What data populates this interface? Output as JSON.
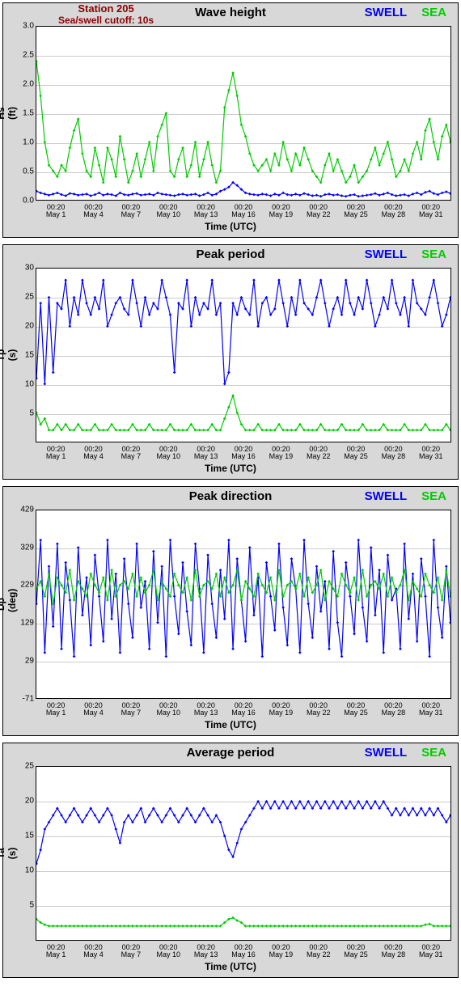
{
  "global": {
    "station_label_line1": "Station 205",
    "station_label_line2": "Sea/swell cutoff: 10s",
    "legend_swell": "SWELL",
    "legend_sea": "SEA",
    "x_axis_label": "Time (UTC)",
    "x_tick_dates": [
      "May 1",
      "May 4",
      "May 7",
      "May 10",
      "May 13",
      "May 16",
      "May 19",
      "May 22",
      "May 25",
      "May 28",
      "May 31"
    ],
    "x_tick_time": "00:20",
    "colors": {
      "swell": "#0000ff",
      "sea": "#00cc00",
      "panel_bg": "#d8d8d8",
      "plot_bg": "#ffffff",
      "grid": "#cccccc",
      "station_text": "#8b0000"
    },
    "font_sizes": {
      "title": 15,
      "legend": 15,
      "ticks": 10,
      "axis_label": 12,
      "station": 13
    }
  },
  "panels": [
    {
      "id": "wave_height",
      "title": "Wave height",
      "ylabel": "Hs (ft)",
      "ylim": [
        0.0,
        3.0
      ],
      "ytick_step": 0.5,
      "yticks": [
        "0.0",
        "0.5",
        "1.0",
        "1.5",
        "2.0",
        "2.5",
        "3.0"
      ],
      "show_station": true,
      "type": "line",
      "line_width": 1.2,
      "marker": "diamond",
      "marker_size": 2.5,
      "series": {
        "sea": [
          2.4,
          1.8,
          1.0,
          0.6,
          0.5,
          0.4,
          0.6,
          0.5,
          0.9,
          1.2,
          1.4,
          0.8,
          0.5,
          0.4,
          0.9,
          0.6,
          0.3,
          0.9,
          0.7,
          0.4,
          1.1,
          0.7,
          0.3,
          0.5,
          0.8,
          0.4,
          0.7,
          1.0,
          0.5,
          1.1,
          1.3,
          1.5,
          0.5,
          0.4,
          0.7,
          0.9,
          0.4,
          0.6,
          1.0,
          0.4,
          0.7,
          1.0,
          0.6,
          0.3,
          0.5,
          1.6,
          1.9,
          2.2,
          1.8,
          1.3,
          1.1,
          0.8,
          0.6,
          0.5,
          0.6,
          0.7,
          0.5,
          0.8,
          0.6,
          1.0,
          0.7,
          0.5,
          0.8,
          0.6,
          0.9,
          0.7,
          0.5,
          0.4,
          0.3,
          0.6,
          0.8,
          0.5,
          0.7,
          0.5,
          0.3,
          0.4,
          0.6,
          0.3,
          0.4,
          0.5,
          0.7,
          0.9,
          0.6,
          0.8,
          1.0,
          0.7,
          0.4,
          0.5,
          0.7,
          0.5,
          0.8,
          1.0,
          0.7,
          1.2,
          1.4,
          1.0,
          0.7,
          1.1,
          1.3,
          1.0
        ],
        "swell": [
          0.15,
          0.12,
          0.1,
          0.08,
          0.1,
          0.12,
          0.09,
          0.07,
          0.11,
          0.1,
          0.08,
          0.09,
          0.1,
          0.07,
          0.09,
          0.12,
          0.08,
          0.1,
          0.09,
          0.07,
          0.12,
          0.09,
          0.08,
          0.1,
          0.11,
          0.08,
          0.09,
          0.1,
          0.08,
          0.12,
          0.1,
          0.09,
          0.08,
          0.07,
          0.09,
          0.1,
          0.08,
          0.09,
          0.1,
          0.07,
          0.09,
          0.12,
          0.08,
          0.1,
          0.15,
          0.18,
          0.22,
          0.3,
          0.25,
          0.18,
          0.12,
          0.1,
          0.09,
          0.08,
          0.1,
          0.09,
          0.07,
          0.1,
          0.08,
          0.12,
          0.09,
          0.08,
          0.1,
          0.08,
          0.11,
          0.09,
          0.07,
          0.08,
          0.06,
          0.09,
          0.1,
          0.08,
          0.09,
          0.07,
          0.06,
          0.08,
          0.09,
          0.06,
          0.07,
          0.08,
          0.09,
          0.11,
          0.08,
          0.1,
          0.12,
          0.09,
          0.07,
          0.08,
          0.09,
          0.07,
          0.1,
          0.12,
          0.09,
          0.13,
          0.15,
          0.11,
          0.09,
          0.12,
          0.14,
          0.11
        ]
      }
    },
    {
      "id": "peak_period",
      "title": "Peak period",
      "ylabel": "Tp (s)",
      "ylim": [
        0,
        30
      ],
      "ytick_step": 5,
      "yticks": [
        "5",
        "10",
        "15",
        "20",
        "25",
        "30"
      ],
      "show_station": false,
      "type": "line",
      "line_width": 1.2,
      "marker": "diamond",
      "marker_size": 2.5,
      "series": {
        "swell": [
          11,
          24,
          10,
          25,
          12,
          24,
          23,
          28,
          20,
          25,
          22,
          28,
          24,
          22,
          25,
          23,
          28,
          20,
          22,
          24,
          25,
          23,
          22,
          28,
          24,
          20,
          25,
          22,
          24,
          23,
          28,
          25,
          22,
          12,
          24,
          23,
          28,
          20,
          25,
          22,
          24,
          23,
          28,
          22,
          24,
          10,
          12,
          24,
          22,
          25,
          23,
          22,
          28,
          20,
          24,
          25,
          22,
          23,
          28,
          24,
          20,
          25,
          22,
          28,
          24,
          23,
          22,
          25,
          28,
          24,
          20,
          23,
          25,
          22,
          28,
          24,
          22,
          25,
          23,
          28,
          24,
          20,
          22,
          25,
          23,
          28,
          24,
          22,
          25,
          20,
          28,
          24,
          23,
          22,
          25,
          28,
          24,
          20,
          22,
          25
        ],
        "sea": [
          5,
          3,
          4,
          2,
          2,
          3,
          2,
          3,
          2,
          2,
          3,
          2,
          2,
          2,
          3,
          2,
          2,
          2,
          3,
          2,
          2,
          2,
          2,
          3,
          2,
          2,
          2,
          3,
          2,
          2,
          2,
          2,
          3,
          2,
          2,
          2,
          2,
          3,
          2,
          2,
          2,
          2,
          3,
          2,
          2,
          4,
          6,
          8,
          5,
          3,
          2,
          2,
          2,
          3,
          2,
          2,
          2,
          2,
          3,
          2,
          2,
          2,
          2,
          3,
          2,
          2,
          2,
          2,
          3,
          2,
          2,
          2,
          2,
          3,
          2,
          2,
          2,
          2,
          3,
          2,
          2,
          2,
          2,
          3,
          2,
          2,
          2,
          2,
          3,
          2,
          2,
          2,
          2,
          3,
          2,
          2,
          2,
          2,
          3,
          2
        ]
      }
    },
    {
      "id": "peak_direction",
      "title": "Peak direction",
      "ylabel": "Dp (deg)",
      "ylim": [
        -71,
        429
      ],
      "ytick_step": 100,
      "yticks": [
        "-71",
        "29",
        "129",
        "229",
        "329",
        "429"
      ],
      "show_station": false,
      "type": "line",
      "line_width": 1.2,
      "marker": "diamond",
      "marker_size": 2.5,
      "series": {
        "swell": [
          180,
          350,
          50,
          280,
          120,
          340,
          60,
          290,
          190,
          40,
          330,
          150,
          250,
          70,
          310,
          200,
          80,
          350,
          140,
          260,
          50,
          300,
          180,
          90,
          340,
          170,
          240,
          60,
          320,
          130,
          280,
          40,
          350,
          200,
          100,
          290,
          160,
          70,
          340,
          220,
          50,
          310,
          180,
          90,
          270,
          140,
          350,
          60,
          300,
          190,
          80,
          330,
          150,
          250,
          40,
          290,
          200,
          110,
          340,
          170,
          70,
          300,
          220,
          50,
          350,
          180,
          90,
          280,
          160,
          240,
          60,
          320,
          130,
          40,
          290,
          200,
          100,
          350,
          170,
          80,
          330,
          150,
          270,
          50,
          310,
          190,
          220,
          60,
          340,
          140,
          260,
          80,
          300,
          200,
          40,
          350,
          170,
          90,
          280,
          130
        ],
        "sea": [
          220,
          240,
          200,
          260,
          180,
          250,
          230,
          210,
          270,
          190,
          240,
          220,
          200,
          260,
          230,
          210,
          250,
          190,
          270,
          200,
          230,
          240,
          220,
          260,
          200,
          250,
          210,
          230,
          270,
          190,
          240,
          220,
          200,
          260,
          230,
          210,
          250,
          190,
          270,
          200,
          230,
          240,
          220,
          260,
          200,
          250,
          210,
          230,
          270,
          190,
          240,
          220,
          200,
          260,
          230,
          210,
          250,
          190,
          270,
          200,
          230,
          240,
          220,
          260,
          200,
          250,
          210,
          230,
          270,
          190,
          240,
          220,
          200,
          260,
          230,
          210,
          250,
          190,
          270,
          200,
          230,
          240,
          220,
          260,
          200,
          250,
          210,
          230,
          270,
          190,
          240,
          220,
          200,
          260,
          230,
          210,
          250,
          190,
          270,
          200
        ]
      }
    },
    {
      "id": "average_period",
      "title": "Average period",
      "ylabel": "Ta (s)",
      "ylim": [
        0,
        25
      ],
      "ytick_step": 5,
      "yticks": [
        "5",
        "10",
        "15",
        "20",
        "25"
      ],
      "show_station": false,
      "type": "line",
      "line_width": 1.2,
      "marker": "diamond",
      "marker_size": 2.5,
      "series": {
        "swell": [
          11,
          13,
          16,
          17,
          18,
          19,
          18,
          17,
          18,
          19,
          18,
          17,
          18,
          19,
          18,
          17,
          18,
          19,
          18,
          16,
          14,
          17,
          18,
          17,
          18,
          19,
          17,
          18,
          19,
          18,
          17,
          18,
          19,
          18,
          17,
          18,
          19,
          18,
          17,
          18,
          19,
          18,
          17,
          18,
          17,
          15,
          13,
          12,
          14,
          16,
          17,
          18,
          19,
          20,
          19,
          20,
          19,
          20,
          19,
          20,
          19,
          20,
          19,
          20,
          19,
          20,
          19,
          20,
          19,
          20,
          19,
          20,
          19,
          20,
          19,
          20,
          19,
          20,
          19,
          20,
          19,
          20,
          19,
          20,
          19,
          18,
          19,
          18,
          19,
          18,
          19,
          18,
          19,
          18,
          19,
          18,
          19,
          18,
          17,
          18
        ],
        "sea": [
          3,
          2.5,
          2.2,
          2,
          2,
          2,
          2,
          2,
          2,
          2,
          2,
          2,
          2,
          2,
          2,
          2,
          2,
          2,
          2,
          2,
          2,
          2,
          2,
          2,
          2,
          2,
          2,
          2,
          2,
          2,
          2,
          2,
          2,
          2,
          2,
          2,
          2,
          2,
          2,
          2,
          2,
          2,
          2,
          2,
          2,
          2.5,
          3,
          3.2,
          2.8,
          2.5,
          2,
          2,
          2,
          2,
          2,
          2,
          2,
          2,
          2,
          2,
          2,
          2,
          2,
          2,
          2,
          2,
          2,
          2,
          2,
          2,
          2,
          2,
          2,
          2,
          2,
          2,
          2,
          2,
          2,
          2,
          2,
          2,
          2,
          2,
          2,
          2,
          2,
          2,
          2,
          2,
          2,
          2,
          2,
          2.2,
          2.3,
          2,
          2,
          2,
          2,
          2
        ]
      }
    }
  ]
}
